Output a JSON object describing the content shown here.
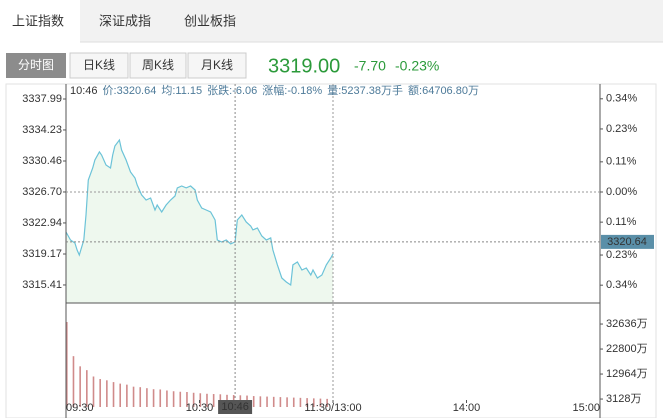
{
  "tabs": [
    "上证指数",
    "深证成指",
    "创业板指"
  ],
  "subtabs": [
    "分时图",
    "日K线",
    "周K线",
    "月K线"
  ],
  "quote": {
    "price": "3319.00",
    "change": "-7.70",
    "change_pct": "-0.23%"
  },
  "info": [
    "10:46",
    "价:3320.64",
    "均:11.15",
    "张跌:-6.06",
    "涨幅:-0.18%",
    "量:5237.38万手",
    "额:64706.80万"
  ],
  "chart_data": {
    "type": "line",
    "color": "#6cc3d8",
    "fill": "#eef8ee",
    "x": [
      0,
      2,
      4,
      5,
      6,
      8,
      9,
      10,
      12,
      13,
      15,
      16,
      18,
      20,
      21,
      22,
      24,
      25,
      27,
      29,
      31,
      32,
      34,
      36,
      38,
      40,
      41,
      43,
      45,
      47,
      49,
      50,
      52,
      54,
      56,
      58,
      59,
      61,
      63,
      65,
      67,
      68,
      70,
      72,
      74,
      76,
      77,
      79,
      81,
      83,
      84,
      86,
      88,
      90,
      92,
      93,
      95,
      97,
      99,
      101,
      102,
      104,
      106,
      108,
      110,
      111,
      113,
      115,
      117,
      119,
      120
    ],
    "values": [
      3321.84,
      3320.87,
      3320.51,
      3319.66,
      3319.05,
      3320.87,
      3323.91,
      3328.16,
      3329.61,
      3330.58,
      3331.56,
      3331.19,
      3329.98,
      3329.61,
      3331.19,
      3332.28,
      3333.01,
      3331.8,
      3330.58,
      3329.13,
      3328.4,
      3327.55,
      3326.34,
      3325.73,
      3325.97,
      3324.51,
      3325.12,
      3324.27,
      3325.12,
      3325.73,
      3326.21,
      3327.19,
      3327.43,
      3327.19,
      3327.43,
      3326.94,
      3325.73,
      3324.76,
      3324.51,
      3324.27,
      3323.3,
      3320.87,
      3320.63,
      3320.87,
      3320.39,
      3320.64,
      3323.3,
      3323.91,
      3323.06,
      3322.57,
      3322.09,
      3322.33,
      3321.36,
      3320.87,
      3321.12,
      3319.66,
      3317.84,
      3316.26,
      3315.77,
      3315.41,
      3317.84,
      3318.2,
      3317.23,
      3317.47,
      3316.62,
      3317.23,
      3316.26,
      3316.62,
      3317.84,
      3318.69,
      3319.17
    ],
    "xlim": [
      0,
      240
    ],
    "xticks": [
      {
        "value": 0,
        "label": "09:30"
      },
      {
        "value": 60,
        "label": "10:30"
      },
      {
        "value": 120,
        "label": "11:30/13:00"
      },
      {
        "value": 180,
        "label": "14:00"
      },
      {
        "value": 240,
        "label": "15:00"
      }
    ],
    "ylim": [
      3313.22,
      3339.81
    ],
    "yticks": [
      3337.99,
      3334.23,
      3330.46,
      {
        "value": 3326.7,
        "label": "3326.70"
      },
      3322.94,
      3319.17,
      3315.41
    ],
    "y2lim": [
      -0.405,
      0.394
    ],
    "y2ticks": [
      {
        "value": 0.34,
        "label": "0.34%"
      },
      {
        "value": 0.23,
        "label": "0.23%"
      },
      {
        "value": 0.11,
        "label": "0.11%"
      },
      {
        "value": 0,
        "label": "0.00%"
      },
      {
        "value": -0.11,
        "label": "0.11%"
      },
      {
        "value": -0.23,
        "label": "0.23%"
      },
      {
        "value": -0.34,
        "label": "0.34%"
      }
    ],
    "crosshair": {
      "x": {
        "value": 76,
        "label": "10:46"
      },
      "y": 3320.64
    },
    "volume": {
      "color": "#d08a8a",
      "x": [
        0,
        3,
        6,
        9,
        12,
        15,
        18,
        21,
        24,
        27,
        30,
        33,
        36,
        39,
        42,
        45,
        48,
        51,
        54,
        57,
        60,
        63,
        66,
        69,
        72,
        75,
        78,
        81,
        84,
        87,
        90,
        93,
        96,
        99,
        102,
        105,
        108,
        111,
        114,
        117
      ],
      "values": [
        33439,
        20000,
        16000,
        14500,
        12000,
        11000,
        10500,
        9800,
        9200,
        8800,
        8000,
        7800,
        7400,
        7000,
        6900,
        6500,
        6200,
        6000,
        5900,
        5600,
        5400,
        5200,
        5100,
        5000,
        4800,
        4700,
        4600,
        4500,
        4300,
        4200,
        4100,
        4000,
        3900,
        3800,
        3700,
        3600,
        3500,
        3400,
        3300,
        3200
      ],
      "ylim": [
        0,
        40914
      ],
      "yticks": [
        {
          "value": 32636,
          "label": "32636万"
        },
        {
          "value": 22800,
          "label": "22800万"
        },
        {
          "value": 12964,
          "label": "12964万"
        },
        {
          "value": 3128,
          "label": "3128万"
        }
      ]
    }
  }
}
